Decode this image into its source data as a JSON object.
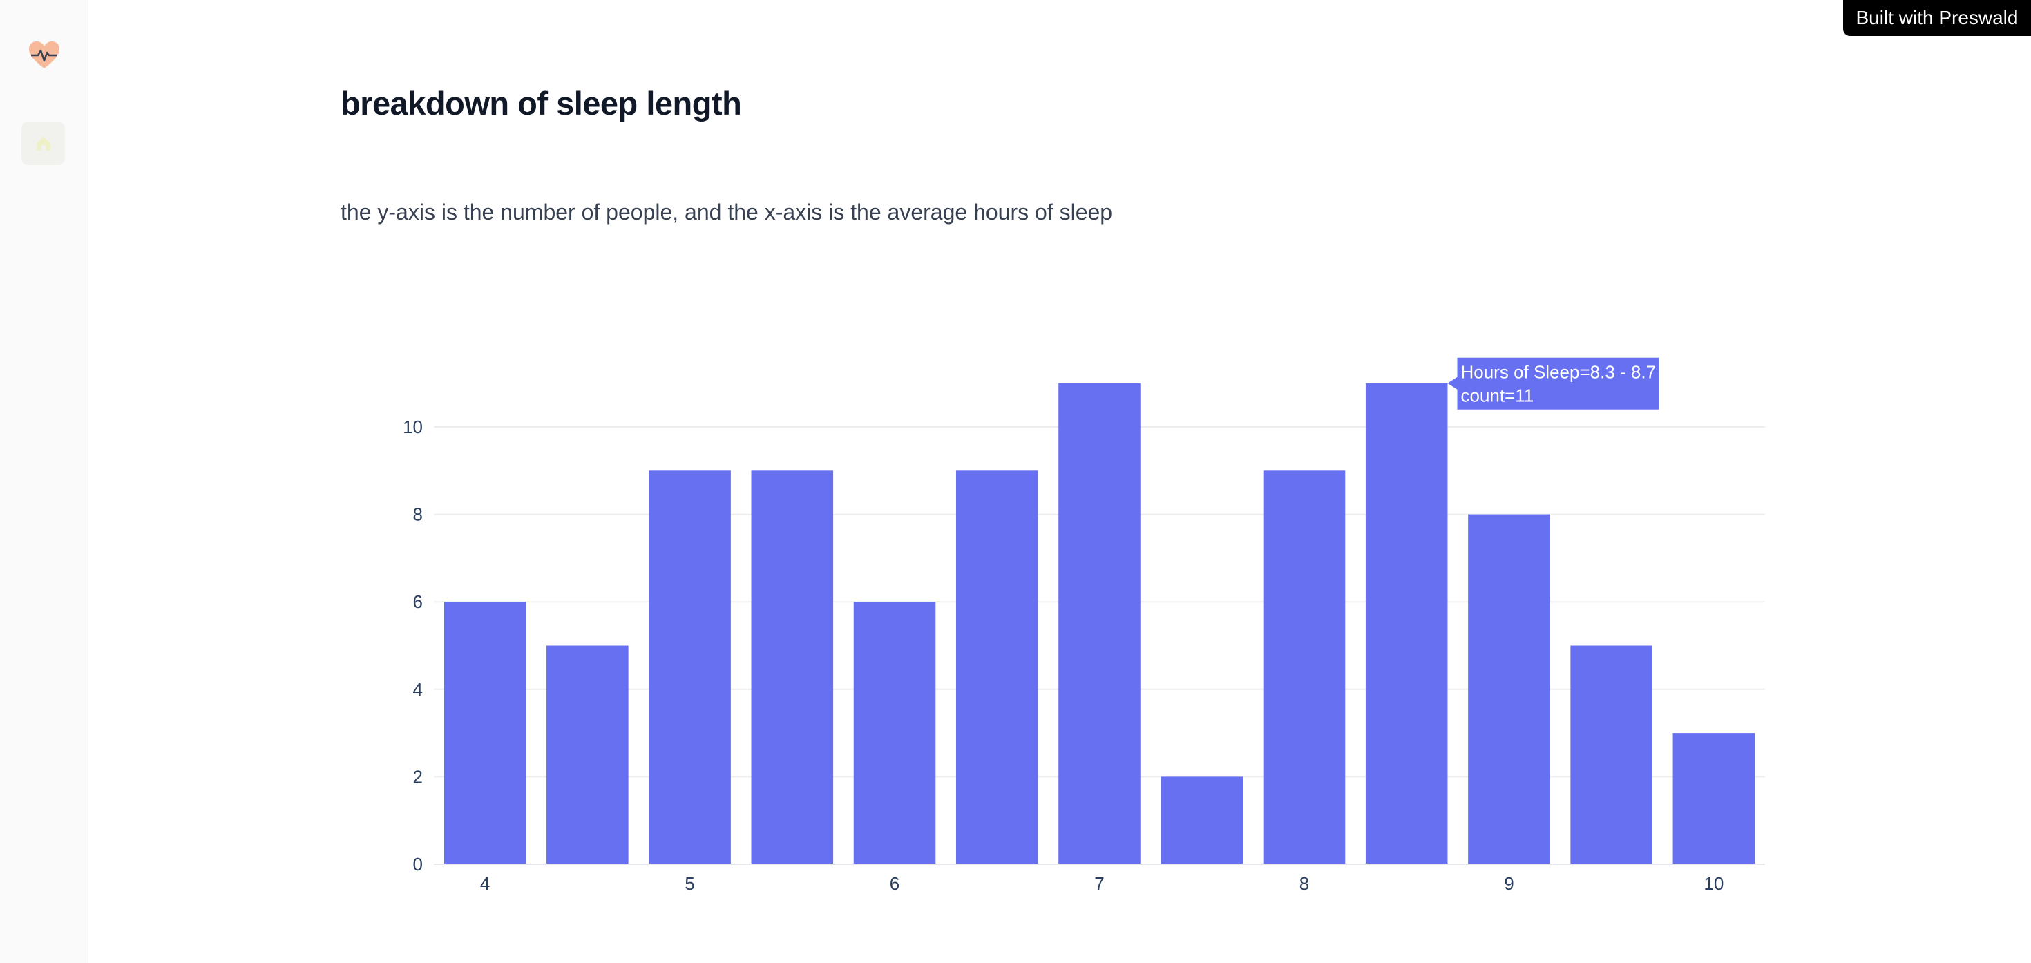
{
  "page": {
    "title": "breakdown of sleep length",
    "description": "the y-axis is the number of people, and the x-axis is the average hours of sleep"
  },
  "badge": {
    "label": "Built with Preswald"
  },
  "sidebar": {
    "logo_icon": "heart-pulse-icon",
    "items": [
      {
        "icon": "home-icon"
      }
    ]
  },
  "colors": {
    "bar": "#6670f1",
    "grid": "#eeeeee",
    "axis_text": "#2a3f5f",
    "logo": "#f6b99a"
  },
  "chart_data": {
    "type": "bar",
    "x_label": "Hours of Sleep",
    "bins": [
      {
        "range": "3.8 - 4.2",
        "center": 4.0,
        "count": 6
      },
      {
        "range": "4.3 - 4.7",
        "center": 4.5,
        "count": 5
      },
      {
        "range": "4.8 - 5.2",
        "center": 5.0,
        "count": 9
      },
      {
        "range": "5.3 - 5.7",
        "center": 5.5,
        "count": 9
      },
      {
        "range": "5.8 - 6.2",
        "center": 6.0,
        "count": 6
      },
      {
        "range": "6.3 - 6.7",
        "center": 6.5,
        "count": 9
      },
      {
        "range": "6.8 - 7.2",
        "center": 7.0,
        "count": 11
      },
      {
        "range": "7.3 - 7.7",
        "center": 7.5,
        "count": 2
      },
      {
        "range": "7.8 - 8.2",
        "center": 8.0,
        "count": 9
      },
      {
        "range": "8.3 - 8.7",
        "center": 8.5,
        "count": 11
      },
      {
        "range": "8.8 - 9.2",
        "center": 9.0,
        "count": 8
      },
      {
        "range": "9.3 - 9.7",
        "center": 9.5,
        "count": 5
      },
      {
        "range": "9.8 - 10.2",
        "center": 10.0,
        "count": 3
      }
    ],
    "xticks": [
      "4",
      "5",
      "6",
      "7",
      "8",
      "9",
      "10"
    ],
    "yticks": [
      "0",
      "2",
      "4",
      "6",
      "8",
      "10"
    ],
    "xlim": [
      3.75,
      10.25
    ],
    "ylim": [
      0,
      11.58
    ],
    "grid": true,
    "tooltip": {
      "bin_index": 9,
      "line1": "Hours of Sleep=8.3 - 8.7",
      "line2": "count=11"
    }
  }
}
